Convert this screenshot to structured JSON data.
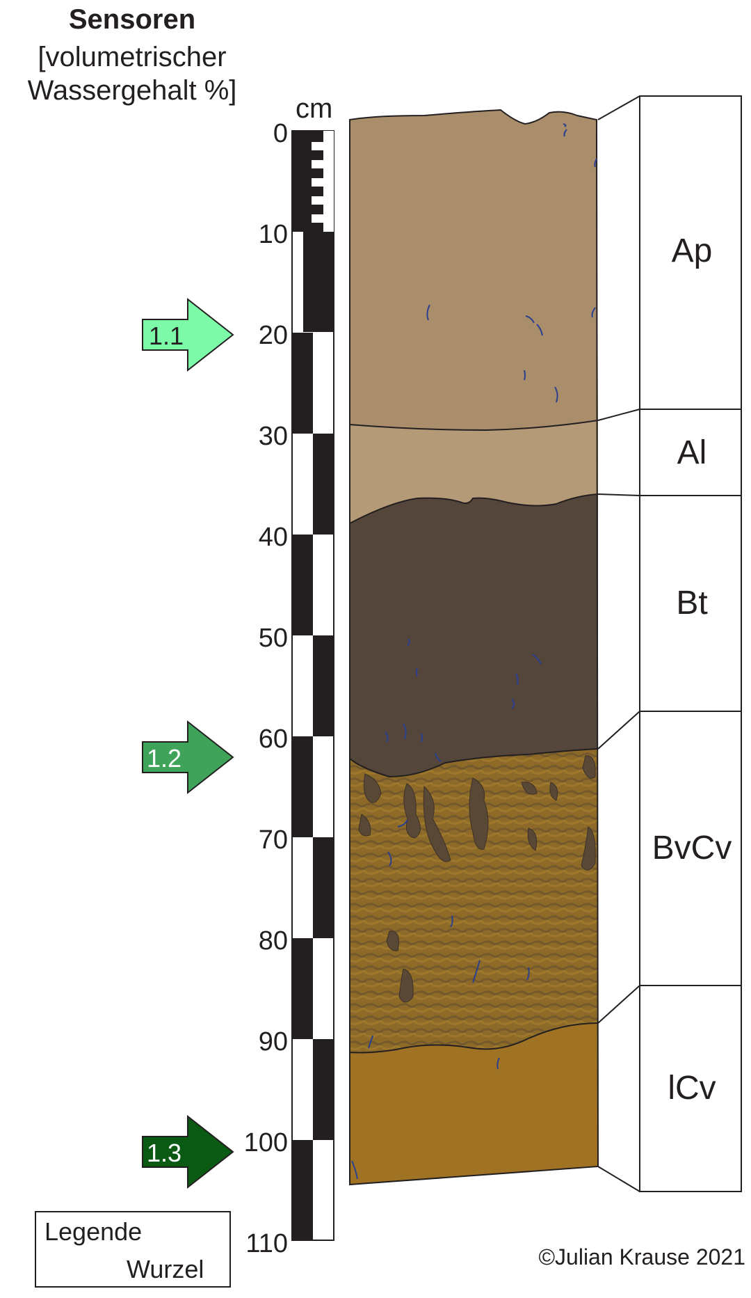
{
  "header": {
    "title": "Sensoren",
    "subtitle_line1": "[volumetrischer",
    "subtitle_line2": "Wassergehalt %]"
  },
  "scale": {
    "unit": "cm",
    "ticks": [
      "0",
      "10",
      "20",
      "30",
      "40",
      "50",
      "60",
      "70",
      "80",
      "90",
      "100",
      "110"
    ]
  },
  "sensors": [
    {
      "label": "1.1",
      "depth_cm": 20,
      "color": "#7dfaa8"
    },
    {
      "label": "1.2",
      "depth_cm": 62,
      "color": "#3fa35a"
    },
    {
      "label": "1.3",
      "depth_cm": 101,
      "color": "#0b5a14"
    }
  ],
  "horizons": [
    {
      "label": "Ap",
      "top_cm": 0,
      "bottom_cm": 29,
      "color": "#aa8e6b"
    },
    {
      "label": "Al",
      "top_cm": 29,
      "bottom_cm": 37,
      "color": "#b59a78"
    },
    {
      "label": "Bt",
      "top_cm": 37,
      "bottom_cm": 63,
      "color": "#54463a"
    },
    {
      "label": "BvCv",
      "top_cm": 63,
      "bottom_cm": 91,
      "color": "#8a6a2c"
    },
    {
      "label": "lCv",
      "top_cm": 91,
      "bottom_cm": 103,
      "color": "#a07224"
    }
  ],
  "legend": {
    "title": "Legende",
    "item_label": "Wurzel",
    "root_color": "#2a3f8f"
  },
  "copyright": "©Julian Krause 2021"
}
